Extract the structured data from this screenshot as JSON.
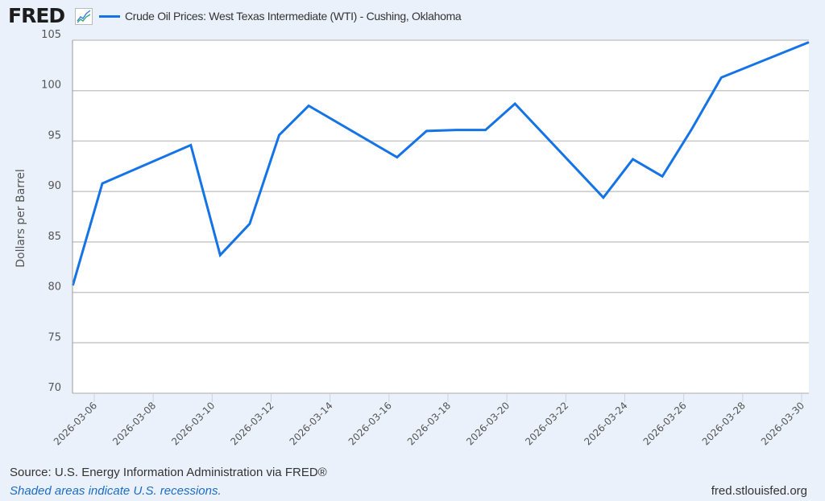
{
  "header": {
    "logo_text": "FRED",
    "logo_icon": "line-chart-icon",
    "series_title": "Crude Oil Prices: West Texas Intermediate (WTI) - Cushing, Oklahoma"
  },
  "colors": {
    "background": "#eaf1fa",
    "plot_background": "#ffffff",
    "series_line": "#1473e6",
    "gridline": "#c8c8c8"
  },
  "footer": {
    "source": "Source: U.S. Energy Information Administration via FRED®",
    "recessions_note": "Shaded areas indicate U.S. recessions.",
    "url": "fred.stlouisfed.org"
  },
  "chart_data": {
    "type": "line",
    "title": "Crude Oil Prices: West Texas Intermediate (WTI) - Cushing, Oklahoma",
    "xlabel": "",
    "ylabel": "Dollars per Barrel",
    "ylim": [
      70,
      105
    ],
    "yticks": [
      70,
      75,
      80,
      85,
      90,
      95,
      100,
      105
    ],
    "xtick_labels": [
      "2026-03-06",
      "2026-03-08",
      "2026-03-10",
      "2026-03-12",
      "2026-03-14",
      "2026-03-16",
      "2026-03-18",
      "2026-03-20",
      "2026-03-22",
      "2026-03-24",
      "2026-03-26",
      "2026-03-28",
      "2026-03-30"
    ],
    "grid": true,
    "legend_position": "top",
    "series": [
      {
        "name": "Crude Oil Prices: West Texas Intermediate (WTI) - Cushing, Oklahoma",
        "x": [
          "2026-03-05",
          "2026-03-06",
          "2026-03-09",
          "2026-03-10",
          "2026-03-11",
          "2026-03-12",
          "2026-03-13",
          "2026-03-16",
          "2026-03-17",
          "2026-03-18",
          "2026-03-19",
          "2026-03-20",
          "2026-03-23",
          "2026-03-24",
          "2026-03-25",
          "2026-03-26",
          "2026-03-27",
          "2026-03-30"
        ],
        "values": [
          80.7,
          90.8,
          94.6,
          83.7,
          86.8,
          95.6,
          98.5,
          93.4,
          96.0,
          96.1,
          96.1,
          98.7,
          89.4,
          93.2,
          91.5,
          96.2,
          101.3,
          104.8
        ]
      }
    ]
  }
}
